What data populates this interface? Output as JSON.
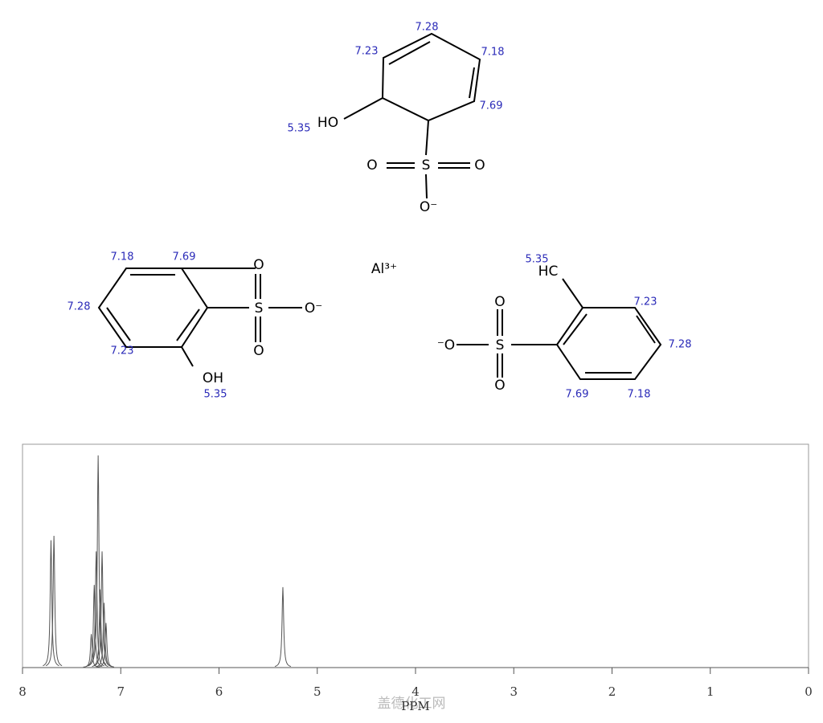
{
  "molecules": [
    {
      "atoms": [
        "HO",
        "O",
        "S",
        "O",
        "O⁻"
      ],
      "shifts": [
        "7.28",
        "7.23",
        "7.18",
        "7.69",
        "5.35"
      ]
    },
    {
      "atoms": [
        "O",
        "S",
        "O⁻",
        "O",
        "OH"
      ],
      "shifts": [
        "7.18",
        "7.69",
        "7.28",
        "7.23",
        "5.35"
      ]
    },
    {
      "atoms": [
        "HC",
        "O",
        "S",
        "O",
        "⁻O"
      ],
      "shifts": [
        "5.35",
        "7.23",
        "7.28",
        "7.69",
        "7.18"
      ]
    }
  ],
  "ion": "Al³⁺",
  "watermark": "盖德化工网",
  "chart_data": {
    "type": "spectrum",
    "x_label": "PPM",
    "x": [
      7.71,
      7.68,
      7.3,
      7.27,
      7.25,
      7.23,
      7.21,
      7.19,
      7.17,
      7.15,
      5.35
    ],
    "values": [
      57,
      59,
      15,
      37,
      52,
      95,
      35,
      52,
      29,
      20,
      36
    ],
    "color": "#555555",
    "xlim": [
      8,
      0
    ],
    "ylim": [
      0,
      100
    ],
    "xticks": [
      8,
      7,
      6,
      5,
      4,
      3,
      2,
      1,
      0
    ]
  }
}
